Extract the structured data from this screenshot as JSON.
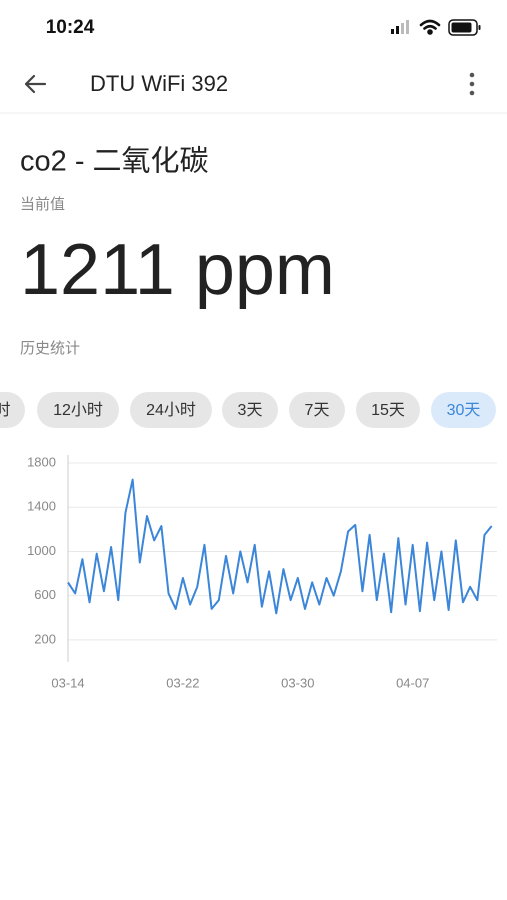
{
  "status_bar": {
    "time": "10:24"
  },
  "header": {
    "title": "DTU WiFi 392"
  },
  "sensor": {
    "name": "co2 - 二氧化碳",
    "current_label": "当前值",
    "current_value": "1211 ppm",
    "history_label": "历史统计"
  },
  "ranges": {
    "options": [
      "时",
      "12小时",
      "24小时",
      "3天",
      "7天",
      "15天",
      "30天"
    ],
    "selected_index": 6
  },
  "chart_data": {
    "type": "line",
    "color": "#3b86d9",
    "grid": true,
    "x": [
      0,
      0.5,
      1,
      1.5,
      2,
      2.5,
      3,
      3.5,
      4,
      4.5,
      5,
      5.5,
      6,
      6.5,
      7,
      7.5,
      8,
      8.5,
      9,
      9.5,
      10,
      10.5,
      11,
      11.5,
      12,
      12.5,
      13,
      13.5,
      14,
      14.5,
      15,
      15.5,
      16,
      16.5,
      17,
      17.5,
      18,
      18.5,
      19,
      19.5,
      20,
      20.5,
      21,
      21.5,
      22,
      22.5,
      23,
      23.5,
      24,
      24.5,
      25,
      25.5,
      26,
      26.5,
      27,
      27.5,
      28,
      28.5,
      29,
      29.5
    ],
    "values": [
      720,
      620,
      930,
      540,
      980,
      640,
      1040,
      560,
      1350,
      1650,
      900,
      1320,
      1100,
      1230,
      620,
      480,
      760,
      520,
      680,
      1060,
      480,
      560,
      960,
      620,
      1000,
      720,
      1060,
      500,
      820,
      440,
      840,
      560,
      760,
      480,
      720,
      520,
      760,
      600,
      820,
      1180,
      1240,
      640,
      1150,
      560,
      980,
      450,
      1120,
      520,
      1060,
      460,
      1080,
      560,
      1000,
      470,
      1100,
      540,
      680,
      560,
      1150,
      1230
    ],
    "xlim": [
      0,
      29.8
    ],
    "xticks": [
      {
        "value": 0,
        "label": "03-14"
      },
      {
        "value": 8,
        "label": "03-22"
      },
      {
        "value": 16,
        "label": "03-30"
      },
      {
        "value": 24,
        "label": "04-07"
      }
    ],
    "ylim": [
      0,
      1800
    ],
    "yticks": [
      200,
      600,
      1000,
      1400,
      1800
    ]
  }
}
